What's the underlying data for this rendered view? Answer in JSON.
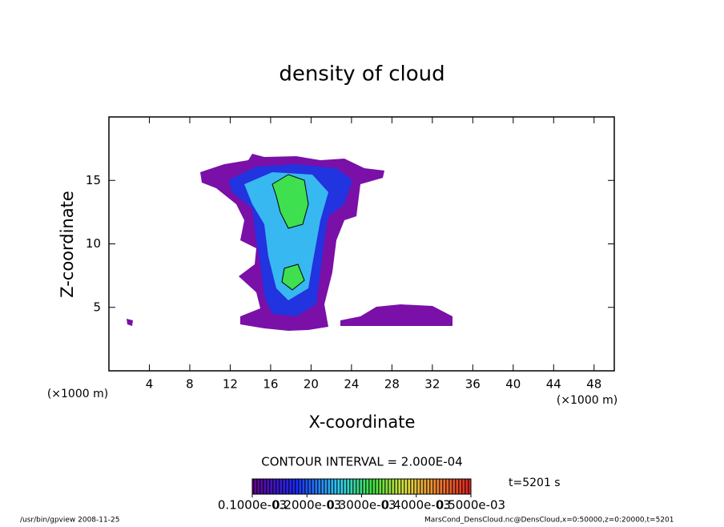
{
  "chart_data": {
    "type": "contour",
    "title": "density of cloud",
    "x_label": "X-coordinate",
    "y_label": "Z-coordinate",
    "x_unit": "(×1000 m)",
    "y_unit": "(×1000 m)",
    "xlim": [
      0,
      50
    ],
    "xticks": [
      4,
      8,
      12,
      16,
      20,
      24,
      28,
      32,
      36,
      40,
      44,
      48
    ],
    "ylim": [
      0,
      20
    ],
    "yticks": [
      5,
      10,
      15
    ],
    "contour_interval": "CONTOUR INTERVAL = 2.000E-04",
    "time_label": "t=5201 s",
    "colorbar": {
      "clim": [
        0.0001,
        0.0005
      ],
      "ticks": [
        {
          "value": 0.0001,
          "label": "0.1000e-03"
        },
        {
          "value": 0.0002,
          "label": "0.2000e-03"
        },
        {
          "value": 0.0003,
          "label": "0.3000e-03"
        },
        {
          "value": 0.0004,
          "label": "0.4000e-03"
        },
        {
          "value": 0.0005,
          "label": "0.5000e-03"
        }
      ]
    },
    "footer_left": "/usr/bin/gpview  2008-11-25",
    "footer_right": "MarsCond_DensCloud.nc@DensCloud,x=0:50000,z=0:20000,t=5201"
  }
}
